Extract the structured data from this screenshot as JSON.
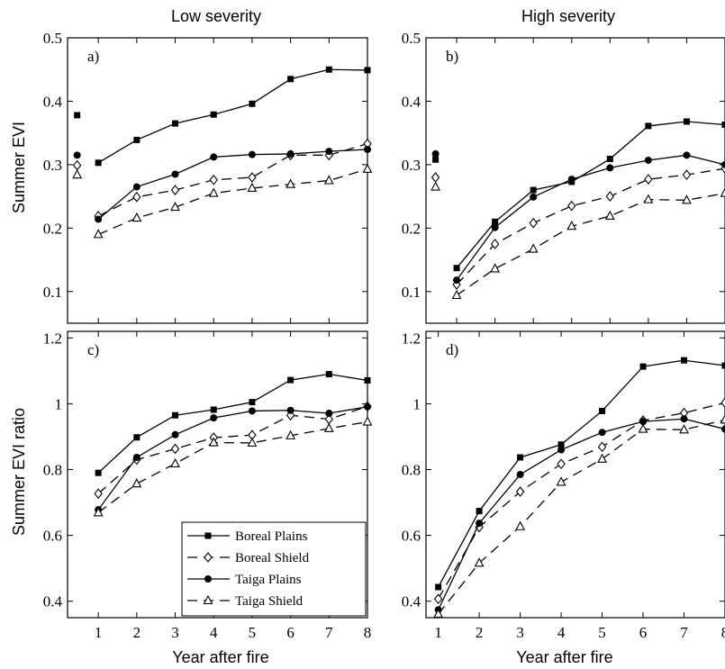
{
  "figure": {
    "column_titles": [
      "Low severity",
      "High severity"
    ],
    "row_ylabels": [
      "Summer EVI",
      "Summer EVI ratio"
    ],
    "xlabel": "Year after fire"
  },
  "series_styles": [
    {
      "name": "Boreal Plains",
      "marker": "square-filled",
      "dash": "solid",
      "color": "#000000"
    },
    {
      "name": "Boreal Shield",
      "marker": "diamond-open",
      "dash": "dashed",
      "color": "#000000"
    },
    {
      "name": "Taiga Plains",
      "marker": "circle-filled",
      "dash": "solid",
      "color": "#000000"
    },
    {
      "name": "Taiga Shield",
      "marker": "triangle-open",
      "dash": "dashed",
      "color": "#000000"
    }
  ],
  "chart_data": [
    {
      "type": "line",
      "panel_label": "a)",
      "title": "Low severity",
      "xlabel": "",
      "ylabel": "Summer EVI",
      "xlim": [
        0.2,
        8
      ],
      "ylim": [
        0.05,
        0.5
      ],
      "xticks": [
        1,
        2,
        3,
        4,
        5,
        6,
        7,
        8
      ],
      "xtick_labels": [],
      "yticks": [
        0.1,
        0.2,
        0.3,
        0.4,
        0.5
      ],
      "ytick_labels": [
        "0.1",
        "0.2",
        "0.3",
        "0.4",
        "0.5"
      ],
      "x": [
        1,
        2,
        3,
        4,
        5,
        6,
        7,
        8
      ],
      "series": [
        {
          "name": "Boreal Plains",
          "prefire": 0.378,
          "values": [
            0.303,
            0.339,
            0.365,
            0.379,
            0.396,
            0.435,
            0.45,
            0.449
          ]
        },
        {
          "name": "Boreal Shield",
          "prefire": 0.299,
          "values": [
            0.219,
            0.249,
            0.26,
            0.276,
            0.28,
            0.315,
            0.315,
            0.333
          ]
        },
        {
          "name": "Taiga Plains",
          "prefire": 0.315,
          "values": [
            0.214,
            0.265,
            0.285,
            0.312,
            0.316,
            0.317,
            0.321,
            0.324
          ]
        },
        {
          "name": "Taiga Shield",
          "prefire": 0.284,
          "values": [
            0.19,
            0.216,
            0.233,
            0.255,
            0.263,
            0.269,
            0.275,
            0.293
          ]
        }
      ]
    },
    {
      "type": "line",
      "panel_label": "b)",
      "title": "High severity",
      "xlabel": "",
      "ylabel": "",
      "xlim": [
        0.2,
        8
      ],
      "ylim": [
        0.05,
        0.5
      ],
      "xticks": [
        1,
        2,
        3,
        4,
        5,
        6,
        7,
        8
      ],
      "xtick_labels": [],
      "yticks": [
        0.1,
        0.2,
        0.3,
        0.4,
        0.5
      ],
      "ytick_labels": [
        "0.1",
        "0.2",
        "0.3",
        "0.4",
        "0.5"
      ],
      "x": [
        1,
        2,
        3,
        4,
        5,
        6,
        7,
        8
      ],
      "series": [
        {
          "name": "Boreal Plains",
          "prefire": 0.308,
          "values": [
            0.137,
            0.21,
            0.26,
            0.273,
            0.309,
            0.361,
            0.368,
            0.363
          ]
        },
        {
          "name": "Boreal Shield",
          "prefire": 0.28,
          "values": [
            0.111,
            0.175,
            0.208,
            0.235,
            0.25,
            0.277,
            0.284,
            0.294
          ]
        },
        {
          "name": "Taiga Plains",
          "prefire": 0.317,
          "values": [
            0.118,
            0.201,
            0.249,
            0.277,
            0.295,
            0.307,
            0.315,
            0.3
          ]
        },
        {
          "name": "Taiga Shield",
          "prefire": 0.265,
          "values": [
            0.094,
            0.136,
            0.167,
            0.203,
            0.219,
            0.245,
            0.244,
            0.255
          ]
        }
      ]
    },
    {
      "type": "line",
      "panel_label": "c)",
      "title": "",
      "xlabel": "Year after fire",
      "ylabel": "Summer EVI ratio",
      "xlim": [
        0.2,
        8
      ],
      "ylim": [
        0.35,
        1.22
      ],
      "xticks": [
        1,
        2,
        3,
        4,
        5,
        6,
        7,
        8
      ],
      "xtick_labels": [
        "1",
        "2",
        "3",
        "4",
        "5",
        "6",
        "7",
        "8"
      ],
      "yticks": [
        0.4,
        0.6,
        0.8,
        1.0,
        1.2
      ],
      "ytick_labels": [
        "0.4",
        "0.6",
        "0.8",
        "1",
        "1.2"
      ],
      "x": [
        1,
        2,
        3,
        4,
        5,
        6,
        7,
        8
      ],
      "series": [
        {
          "name": "Boreal Plains",
          "values": [
            0.79,
            0.898,
            0.965,
            0.982,
            1.005,
            1.072,
            1.09,
            1.071
          ]
        },
        {
          "name": "Boreal Shield",
          "values": [
            0.727,
            0.83,
            0.863,
            0.897,
            0.905,
            0.965,
            0.953,
            0.992
          ]
        },
        {
          "name": "Taiga Plains",
          "values": [
            0.678,
            0.837,
            0.906,
            0.957,
            0.978,
            0.98,
            0.971,
            0.991
          ]
        },
        {
          "name": "Taiga Shield",
          "values": [
            0.669,
            0.757,
            0.818,
            0.882,
            0.881,
            0.903,
            0.925,
            0.945
          ]
        }
      ],
      "legend": {
        "entries": [
          "Boreal Plains",
          "Boreal Shield",
          "Taiga Plains",
          "Taiga Shield"
        ],
        "placement": "lower-right"
      }
    },
    {
      "type": "line",
      "panel_label": "d)",
      "title": "",
      "xlabel": "Year after fire",
      "ylabel": "",
      "xlim": [
        0.7,
        8
      ],
      "ylim": [
        0.35,
        1.22
      ],
      "xticks": [
        1,
        2,
        3,
        4,
        5,
        6,
        7,
        8
      ],
      "xtick_labels": [
        "1",
        "2",
        "3",
        "4",
        "5",
        "6",
        "7",
        "8"
      ],
      "yticks": [
        0.4,
        0.6,
        0.8,
        1.0,
        1.2
      ],
      "ytick_labels": [
        "0.4",
        "0.6",
        "0.8",
        "1",
        "1.2"
      ],
      "x": [
        1,
        2,
        3,
        4,
        5,
        6,
        7,
        8
      ],
      "series": [
        {
          "name": "Boreal Plains",
          "values": [
            0.443,
            0.674,
            0.837,
            0.876,
            0.978,
            1.113,
            1.132,
            1.116
          ]
        },
        {
          "name": "Boreal Shield",
          "values": [
            0.407,
            0.625,
            0.733,
            0.817,
            0.869,
            0.949,
            0.972,
            1.003
          ]
        },
        {
          "name": "Taiga Plains",
          "values": [
            0.374,
            0.637,
            0.785,
            0.86,
            0.913,
            0.946,
            0.954,
            0.923
          ]
        },
        {
          "name": "Taiga Shield",
          "values": [
            0.361,
            0.516,
            0.627,
            0.762,
            0.832,
            0.923,
            0.921,
            0.951
          ]
        }
      ]
    }
  ]
}
